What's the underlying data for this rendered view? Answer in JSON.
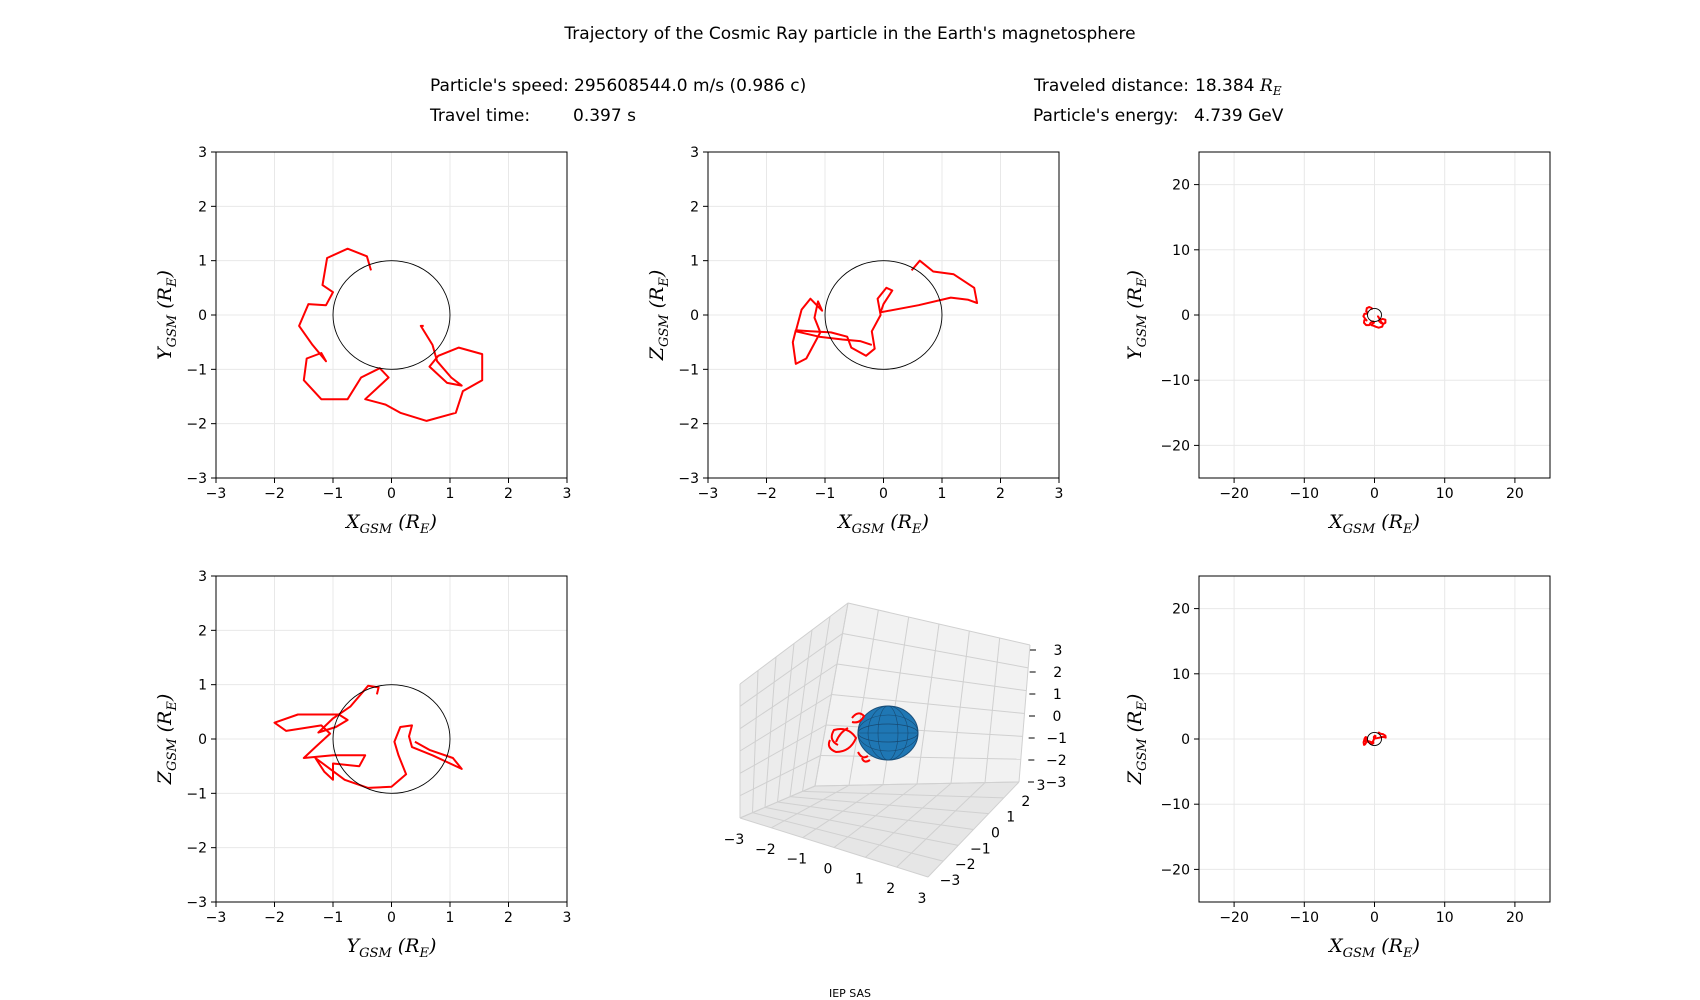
{
  "title": "Trajectory of the Cosmic Ray particle in the Earth's magnetosphere",
  "info": {
    "speed_label": "Particle's speed:",
    "speed_value": "295608544.0 m/s (0.986 c)",
    "time_label": "Travel time:",
    "time_value": "0.397 s",
    "distance_label": "Traveled distance:",
    "distance_value": "18.384",
    "distance_unit": "R_E",
    "energy_label": "Particle's energy:",
    "energy_value": "4.739 GeV"
  },
  "footer": "IEP SAS",
  "colors": {
    "trajectory": "#ff0000",
    "earth": "#1f77b4",
    "grid": "#e8e8e8"
  },
  "chart_data": [
    {
      "type": "line",
      "id": "xy-small",
      "xlabel": "X_GSM (R_E)",
      "ylabel": "Y_GSM (R_E)",
      "xlim": [
        -3,
        3
      ],
      "ylim": [
        -3,
        3
      ],
      "ticks": [
        -3,
        -2,
        -1,
        0,
        1,
        2,
        3
      ],
      "grid": true,
      "earth_circle_radius": 1,
      "series": [
        {
          "points": [
            [
              -0.35,
              0.82
            ],
            [
              -0.42,
              1.08
            ],
            [
              -0.75,
              1.22
            ],
            [
              -1.1,
              1.05
            ],
            [
              -1.18,
              0.55
            ],
            [
              -1.0,
              0.42
            ],
            [
              -1.12,
              0.18
            ],
            [
              -1.42,
              0.2
            ],
            [
              -1.58,
              -0.2
            ],
            [
              -1.35,
              -0.55
            ],
            [
              -1.12,
              -0.85
            ],
            [
              -1.2,
              -0.7
            ],
            [
              -1.45,
              -0.8
            ],
            [
              -1.5,
              -1.2
            ],
            [
              -1.2,
              -1.55
            ],
            [
              -0.75,
              -1.55
            ],
            [
              -0.52,
              -1.15
            ],
            [
              -0.2,
              -0.98
            ],
            [
              -0.05,
              -1.15
            ],
            [
              -0.25,
              -1.35
            ],
            [
              -0.45,
              -1.55
            ],
            [
              -0.1,
              -1.65
            ],
            [
              0.15,
              -1.8
            ],
            [
              0.6,
              -1.95
            ],
            [
              1.1,
              -1.8
            ],
            [
              1.22,
              -1.4
            ],
            [
              1.55,
              -1.2
            ],
            [
              1.55,
              -0.72
            ],
            [
              1.15,
              -0.6
            ],
            [
              0.8,
              -0.75
            ],
            [
              0.65,
              -0.95
            ],
            [
              0.95,
              -1.25
            ],
            [
              1.2,
              -1.3
            ],
            [
              1.02,
              -1.15
            ],
            [
              0.78,
              -0.85
            ],
            [
              0.7,
              -0.55
            ],
            [
              0.5,
              -0.2
            ],
            [
              0.55,
              -0.2
            ]
          ]
        }
      ]
    },
    {
      "type": "line",
      "id": "xz-small",
      "xlabel": "X_GSM (R_E)",
      "ylabel": "Z_GSM (R_E)",
      "xlim": [
        -3,
        3
      ],
      "ylim": [
        -3,
        3
      ],
      "ticks": [
        -3,
        -2,
        -1,
        0,
        1,
        2,
        3
      ],
      "grid": true,
      "earth_circle_radius": 1,
      "series": [
        {
          "points": [
            [
              0.48,
              0.82
            ],
            [
              0.62,
              1.0
            ],
            [
              0.85,
              0.8
            ],
            [
              1.2,
              0.75
            ],
            [
              1.55,
              0.5
            ],
            [
              1.6,
              0.22
            ],
            [
              1.45,
              0.28
            ],
            [
              1.15,
              0.32
            ],
            [
              0.6,
              0.18
            ],
            [
              -0.05,
              0.05
            ],
            [
              0.0,
              0.2
            ],
            [
              0.15,
              0.45
            ],
            [
              0.05,
              0.5
            ],
            [
              -0.1,
              0.3
            ],
            [
              -0.05,
              0.0
            ],
            [
              -0.2,
              -0.3
            ],
            [
              -0.15,
              -0.62
            ],
            [
              -0.3,
              -0.75
            ],
            [
              -0.55,
              -0.6
            ],
            [
              -0.62,
              -0.4
            ],
            [
              -0.9,
              -0.32
            ],
            [
              -1.25,
              -0.3
            ],
            [
              -1.5,
              -0.28
            ],
            [
              -1.55,
              -0.5
            ],
            [
              -1.5,
              -0.9
            ],
            [
              -1.32,
              -0.8
            ],
            [
              -1.08,
              -0.32
            ],
            [
              -1.18,
              -0.05
            ],
            [
              -1.12,
              0.25
            ],
            [
              -1.05,
              0.08
            ],
            [
              -1.25,
              0.3
            ],
            [
              -1.4,
              0.1
            ],
            [
              -1.5,
              -0.3
            ],
            [
              -1.1,
              -0.4
            ],
            [
              -0.7,
              -0.45
            ],
            [
              -0.4,
              -0.48
            ],
            [
              -0.2,
              -0.55
            ]
          ]
        }
      ]
    },
    {
      "type": "line",
      "id": "xy-large",
      "xlabel": "X_GSM (R_E)",
      "ylabel": "Y_GSM (R_E)",
      "xlim": [
        -25,
        25
      ],
      "ylim": [
        -25,
        25
      ],
      "ticks": [
        -20,
        -10,
        0,
        10,
        20
      ],
      "grid": true,
      "earth_circle_radius": 1,
      "series": [
        {
          "ref": "xy-small"
        }
      ]
    },
    {
      "type": "line",
      "id": "yz-small",
      "xlabel": "Y_GSM (R_E)",
      "ylabel": "Z_GSM (R_E)",
      "xlim": [
        -3,
        3
      ],
      "ylim": [
        -3,
        3
      ],
      "ticks": [
        -3,
        -2,
        -1,
        0,
        1,
        2,
        3
      ],
      "grid": true,
      "earth_circle_radius": 1,
      "series": [
        {
          "points": [
            [
              -0.25,
              0.82
            ],
            [
              -0.22,
              0.95
            ],
            [
              -0.4,
              0.98
            ],
            [
              -0.7,
              0.6
            ],
            [
              -1.0,
              0.38
            ],
            [
              -1.25,
              0.12
            ],
            [
              -0.95,
              0.22
            ],
            [
              -0.75,
              0.35
            ],
            [
              -0.9,
              0.45
            ],
            [
              -1.6,
              0.45
            ],
            [
              -2.0,
              0.3
            ],
            [
              -1.8,
              0.15
            ],
            [
              -1.2,
              0.25
            ],
            [
              -1.05,
              0.1
            ],
            [
              -1.3,
              -0.15
            ],
            [
              -1.5,
              -0.35
            ],
            [
              -1.0,
              -0.3
            ],
            [
              -0.45,
              -0.3
            ],
            [
              -0.55,
              -0.5
            ],
            [
              -1.0,
              -0.45
            ],
            [
              -1.0,
              -0.75
            ],
            [
              -1.15,
              -0.6
            ],
            [
              -1.3,
              -0.35
            ],
            [
              -0.8,
              -0.75
            ],
            [
              -0.4,
              -0.9
            ],
            [
              0.0,
              -0.88
            ],
            [
              0.25,
              -0.65
            ],
            [
              0.12,
              -0.3
            ],
            [
              0.05,
              -0.05
            ],
            [
              0.15,
              0.22
            ],
            [
              0.35,
              0.25
            ],
            [
              0.3,
              0.05
            ],
            [
              0.35,
              -0.15
            ],
            [
              0.7,
              -0.3
            ],
            [
              1.2,
              -0.55
            ],
            [
              1.05,
              -0.35
            ],
            [
              0.65,
              -0.2
            ],
            [
              0.4,
              -0.05
            ]
          ]
        }
      ]
    },
    {
      "type": "line",
      "id": "3d",
      "xlim": [
        -3,
        3
      ],
      "ylim": [
        -3,
        3
      ],
      "zlim": [
        -3,
        3
      ],
      "ticks": [
        -3,
        -2,
        -1,
        0,
        1,
        2,
        3
      ],
      "grid": true
    },
    {
      "type": "line",
      "id": "xz-large",
      "xlabel": "X_GSM (R_E)",
      "ylabel": "Z_GSM (R_E)",
      "xlim": [
        -25,
        25
      ],
      "ylim": [
        -25,
        25
      ],
      "ticks": [
        -20,
        -10,
        0,
        10,
        20
      ],
      "grid": true,
      "earth_circle_radius": 1,
      "series": [
        {
          "ref": "xz-small"
        }
      ]
    }
  ]
}
